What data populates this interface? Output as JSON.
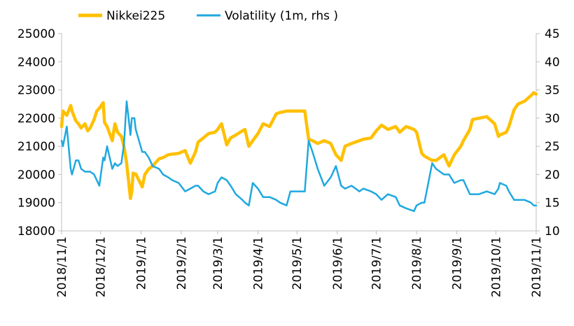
{
  "chart_data": {
    "type": "line",
    "title": "",
    "x_tick_labels": [
      "2018/11/1",
      "2018/12/1",
      "2019/1/1",
      "2019/2/1",
      "2019/3/1",
      "2019/4/1",
      "2019/5/1",
      "2019/6/1",
      "2019/7/1",
      "2019/8/1",
      "2019/9/1",
      "2019/10/1",
      "2019/11/1"
    ],
    "y_left_ticks": [
      "18000",
      "19000",
      "20000",
      "21000",
      "22000",
      "23000",
      "24000",
      "25000"
    ],
    "y_right_ticks": [
      "10",
      "15",
      "20",
      "25",
      "30",
      "35",
      "40",
      "45"
    ],
    "ylim_left": [
      18000,
      25000
    ],
    "ylim_right": [
      10,
      45
    ],
    "legend_position": "top",
    "series": [
      {
        "name": "Nikkei225",
        "axis": "left",
        "color": "#ffc000",
        "x": [
          "2018-11-01",
          "2018-11-02",
          "2018-11-05",
          "2018-11-08",
          "2018-11-09",
          "2018-11-12",
          "2018-11-14",
          "2018-11-16",
          "2018-11-19",
          "2018-11-21",
          "2018-11-23",
          "2018-11-26",
          "2018-11-28",
          "2018-11-30",
          "2018-12-03",
          "2018-12-04",
          "2018-12-06",
          "2018-12-10",
          "2018-12-12",
          "2018-12-14",
          "2018-12-17",
          "2018-12-19",
          "2018-12-21",
          "2018-12-24",
          "2018-12-25",
          "2018-12-26",
          "2018-12-27",
          "2018-12-28",
          "2019-01-02",
          "2019-01-04",
          "2019-01-07",
          "2019-01-10",
          "2019-01-15",
          "2019-01-18",
          "2019-01-22",
          "2019-01-25",
          "2019-01-30",
          "2019-02-04",
          "2019-02-08",
          "2019-02-12",
          "2019-02-14",
          "2019-02-18",
          "2019-02-22",
          "2019-02-27",
          "2019-03-01",
          "2019-03-04",
          "2019-03-08",
          "2019-03-11",
          "2019-03-15",
          "2019-03-20",
          "2019-03-22",
          "2019-03-25",
          "2019-03-28",
          "2019-04-01",
          "2019-04-05",
          "2019-04-10",
          "2019-04-15",
          "2019-04-18",
          "2019-04-23",
          "2019-04-26",
          "2019-05-07",
          "2019-05-10",
          "2019-05-13",
          "2019-05-17",
          "2019-05-22",
          "2019-05-27",
          "2019-05-31",
          "2019-06-04",
          "2019-06-07",
          "2019-06-12",
          "2019-06-18",
          "2019-06-21",
          "2019-06-27",
          "2019-07-01",
          "2019-07-05",
          "2019-07-10",
          "2019-07-16",
          "2019-07-19",
          "2019-07-24",
          "2019-07-30",
          "2019-08-01",
          "2019-08-05",
          "2019-08-07",
          "2019-08-13",
          "2019-08-16",
          "2019-08-22",
          "2019-08-26",
          "2019-08-30",
          "2019-09-04",
          "2019-09-06",
          "2019-09-11",
          "2019-09-13",
          "2019-09-18",
          "2019-09-24",
          "2019-09-30",
          "2019-10-03",
          "2019-10-04",
          "2019-10-09",
          "2019-10-11",
          "2019-10-15",
          "2019-10-18",
          "2019-10-23",
          "2019-10-28",
          "2019-10-30",
          "2019-11-01"
        ],
        "values": [
          21700,
          22250,
          22100,
          22450,
          22250,
          21900,
          21800,
          21650,
          21800,
          21550,
          21650,
          21950,
          22250,
          22350,
          22550,
          21850,
          21700,
          21200,
          21800,
          21500,
          21350,
          20990,
          20400,
          19150,
          19400,
          20050,
          20010,
          20020,
          19560,
          20000,
          20200,
          20300,
          20560,
          20600,
          20700,
          20720,
          20750,
          20850,
          20400,
          20800,
          21150,
          21300,
          21450,
          21500,
          21600,
          21800,
          21050,
          21300,
          21400,
          21550,
          21600,
          21000,
          21200,
          21450,
          21800,
          21700,
          22150,
          22200,
          22250,
          22250,
          22250,
          21250,
          21200,
          21100,
          21200,
          21100,
          20700,
          20500,
          21000,
          21100,
          21200,
          21250,
          21300,
          21550,
          21750,
          21600,
          21700,
          21500,
          21700,
          21600,
          21500,
          20750,
          20650,
          20500,
          20500,
          20700,
          20300,
          20700,
          21000,
          21200,
          21600,
          21950,
          22000,
          22050,
          21800,
          21350,
          21400,
          21500,
          21700,
          22300,
          22500,
          22600,
          22800,
          22900,
          22850
        ]
      },
      {
        "name": "Volatility (1m, rhs )",
        "axis": "right",
        "color": "#1fa8e0",
        "x": [
          "2018-11-01",
          "2018-11-02",
          "2018-11-05",
          "2018-11-08",
          "2018-11-09",
          "2018-11-12",
          "2018-11-14",
          "2018-11-16",
          "2018-11-19",
          "2018-11-21",
          "2018-11-23",
          "2018-11-26",
          "2018-11-28",
          "2018-11-30",
          "2018-12-03",
          "2018-12-04",
          "2018-12-06",
          "2018-12-10",
          "2018-12-12",
          "2018-12-14",
          "2018-12-17",
          "2018-12-19",
          "2018-12-21",
          "2018-12-24",
          "2018-12-25",
          "2018-12-26",
          "2018-12-27",
          "2018-12-28",
          "2019-01-02",
          "2019-01-04",
          "2019-01-07",
          "2019-01-10",
          "2019-01-15",
          "2019-01-18",
          "2019-01-22",
          "2019-01-25",
          "2019-01-30",
          "2019-02-04",
          "2019-02-08",
          "2019-02-12",
          "2019-02-14",
          "2019-02-18",
          "2019-02-22",
          "2019-02-27",
          "2019-03-01",
          "2019-03-04",
          "2019-03-08",
          "2019-03-11",
          "2019-03-15",
          "2019-03-20",
          "2019-03-22",
          "2019-03-25",
          "2019-03-28",
          "2019-04-01",
          "2019-04-05",
          "2019-04-10",
          "2019-04-15",
          "2019-04-18",
          "2019-04-23",
          "2019-04-26",
          "2019-05-07",
          "2019-05-10",
          "2019-05-13",
          "2019-05-17",
          "2019-05-22",
          "2019-05-27",
          "2019-05-31",
          "2019-06-04",
          "2019-06-07",
          "2019-06-12",
          "2019-06-18",
          "2019-06-21",
          "2019-06-27",
          "2019-07-01",
          "2019-07-05",
          "2019-07-10",
          "2019-07-16",
          "2019-07-19",
          "2019-07-24",
          "2019-07-30",
          "2019-08-01",
          "2019-08-05",
          "2019-08-07",
          "2019-08-13",
          "2019-08-16",
          "2019-08-22",
          "2019-08-26",
          "2019-08-30",
          "2019-09-04",
          "2019-09-06",
          "2019-09-11",
          "2019-09-13",
          "2019-09-18",
          "2019-09-24",
          "2019-09-30",
          "2019-10-03",
          "2019-10-04",
          "2019-10-09",
          "2019-10-11",
          "2019-10-15",
          "2019-10-18",
          "2019-10-23",
          "2019-10-28",
          "2019-10-30",
          "2019-11-01"
        ],
        "values": [
          26,
          25,
          28.5,
          21,
          20,
          22.5,
          22.5,
          21,
          20.5,
          20.5,
          20.5,
          20,
          19,
          18,
          23,
          22.5,
          25,
          21,
          22,
          21.5,
          22,
          25.5,
          33,
          27,
          30,
          30,
          30,
          28,
          24,
          24,
          23,
          21.5,
          21,
          20,
          19.5,
          19,
          18.5,
          17,
          17.5,
          18,
          18,
          17,
          16.5,
          17,
          18.5,
          19.5,
          19,
          18,
          16.5,
          15.5,
          15,
          14.5,
          18.5,
          17.5,
          16,
          16,
          15.5,
          15,
          14.5,
          17,
          17,
          26,
          24,
          21,
          18,
          19.5,
          21.5,
          18,
          17.5,
          18,
          17,
          17.5,
          17,
          16.5,
          15.5,
          16.5,
          16,
          14.5,
          14,
          13.5,
          14.5,
          15,
          15,
          22,
          21,
          20,
          20,
          18.5,
          19,
          19,
          16.5,
          16.5,
          16.5,
          17,
          16.5,
          17.5,
          18.5,
          18,
          17,
          15.5,
          15.5,
          15.5,
          15,
          14.5,
          14.5
        ]
      }
    ]
  }
}
